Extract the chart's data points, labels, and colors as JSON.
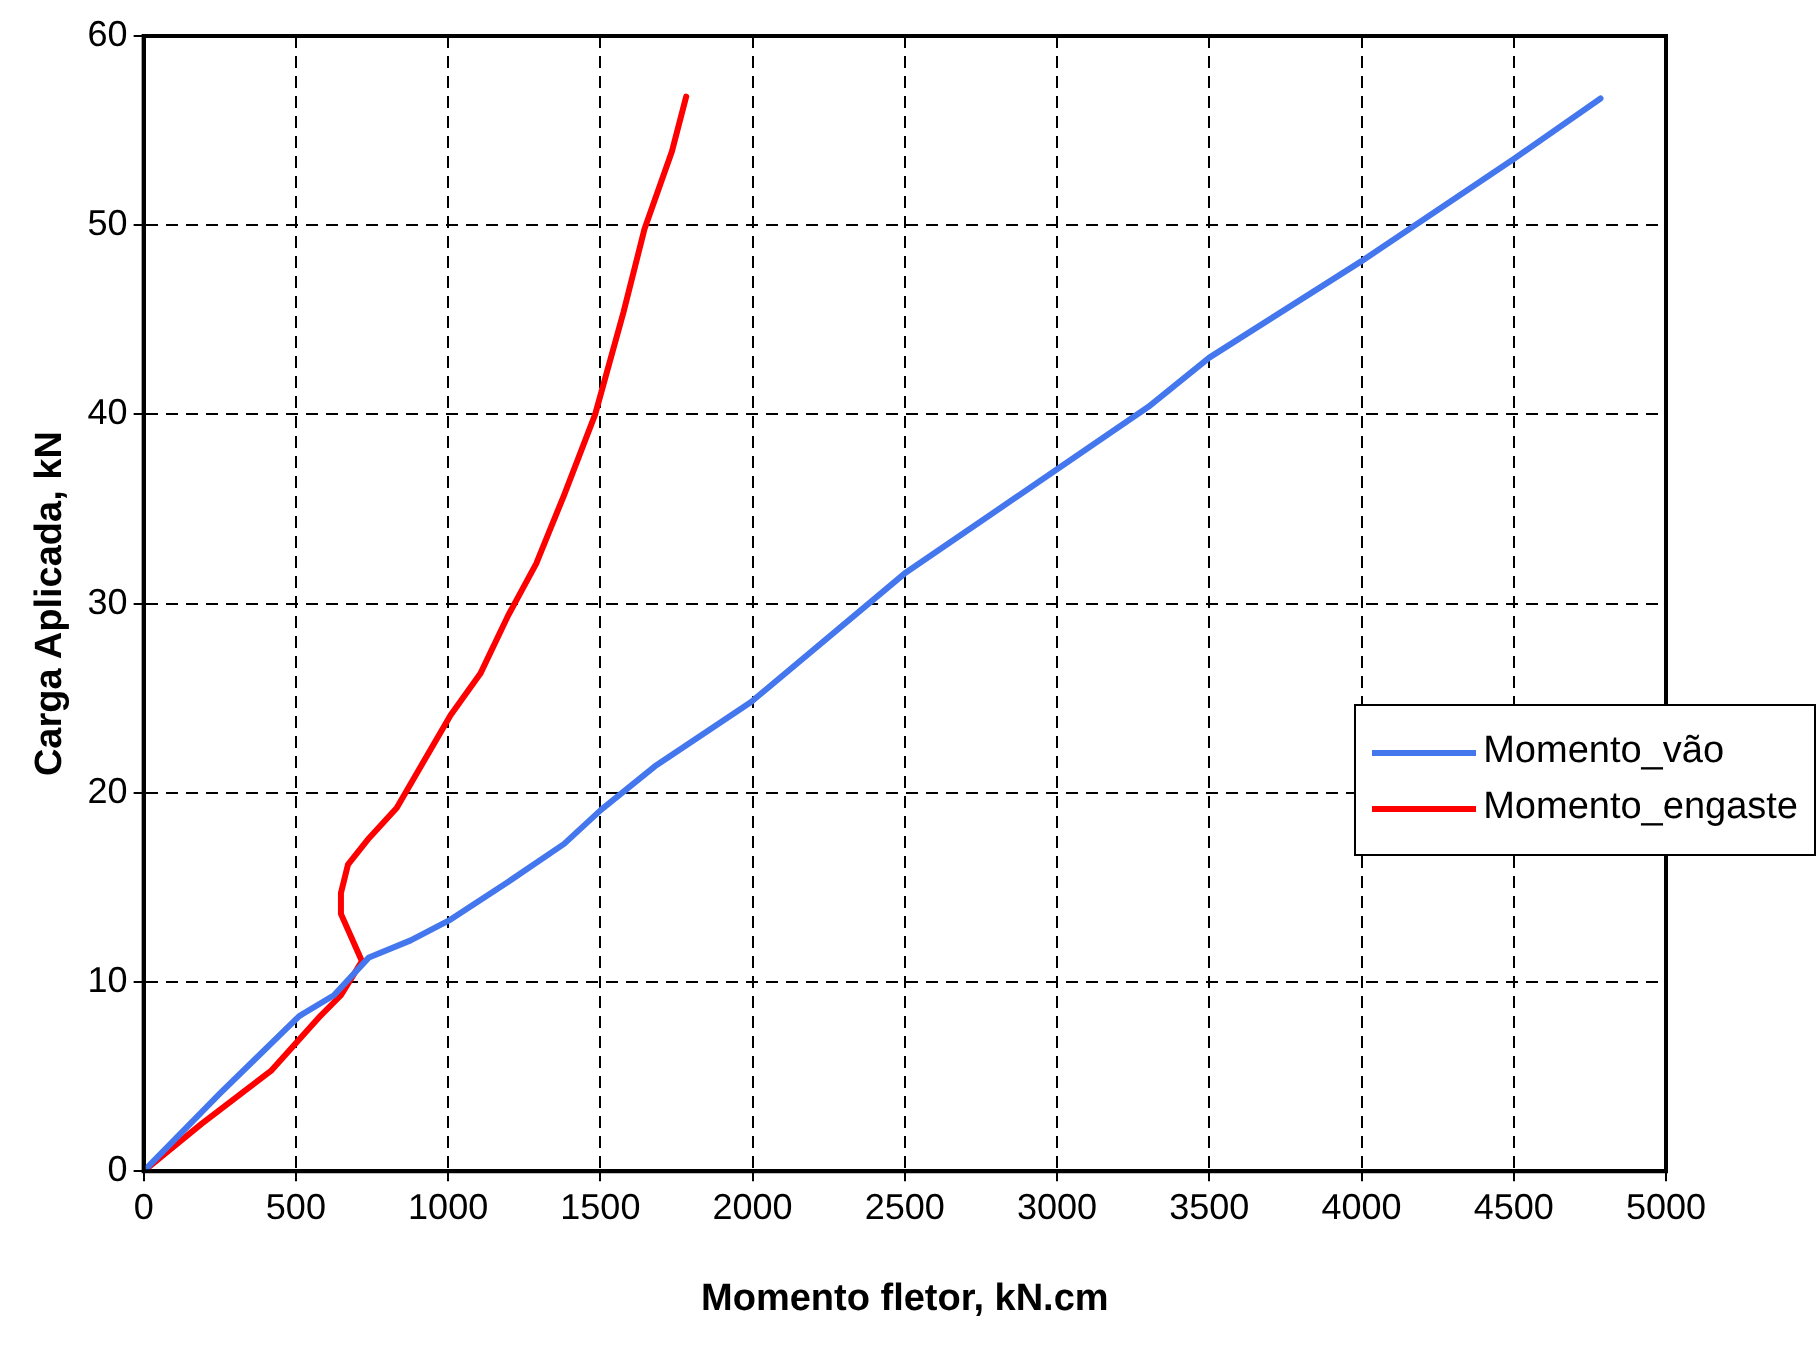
{
  "chart_data": {
    "type": "line",
    "xlabel": "Momento fletor, kN.cm",
    "ylabel": "Carga Aplicada, kN",
    "xlim": [
      0,
      5000
    ],
    "xticks": [
      0,
      500,
      1000,
      1500,
      2000,
      2500,
      3000,
      3500,
      4000,
      4500,
      5000
    ],
    "ylim": [
      0,
      60
    ],
    "yticks": [
      0,
      10,
      20,
      30,
      40,
      50,
      60
    ],
    "grid": true,
    "legend": "right",
    "marker": "none",
    "line_style": "solid",
    "series": [
      {
        "name": "Momento_vão",
        "color": "#4477ee",
        "x": [
          0,
          250,
          511,
          625,
          740,
          877,
          1008,
          1198,
          1381,
          1502,
          1679,
          1995,
          2500,
          3000,
          3300,
          3500,
          4000,
          4500,
          4785
        ],
        "values": [
          0,
          4.1,
          8.2,
          9.3,
          11.3,
          12.2,
          13.3,
          15.3,
          17.3,
          19.1,
          21.4,
          24.8,
          31.6,
          37.1,
          40.4,
          43,
          48.1,
          53.5,
          56.7
        ]
      },
      {
        "name": "Momento_engaste",
        "color": "#ff0000",
        "x": [
          0,
          190,
          418,
          580,
          648,
          717,
          648,
          648,
          671,
          740,
          831,
          1008,
          1106,
          1198,
          1289,
          1380,
          1483,
          1576,
          1645,
          1735,
          1782
        ],
        "values": [
          0,
          2.5,
          5.3,
          8.2,
          9.3,
          11.1,
          13.6,
          14.7,
          16.2,
          17.6,
          19.2,
          24.1,
          26.3,
          29.4,
          32.1,
          35.7,
          40,
          45.4,
          49.8,
          53.9,
          56.8
        ]
      }
    ]
  }
}
